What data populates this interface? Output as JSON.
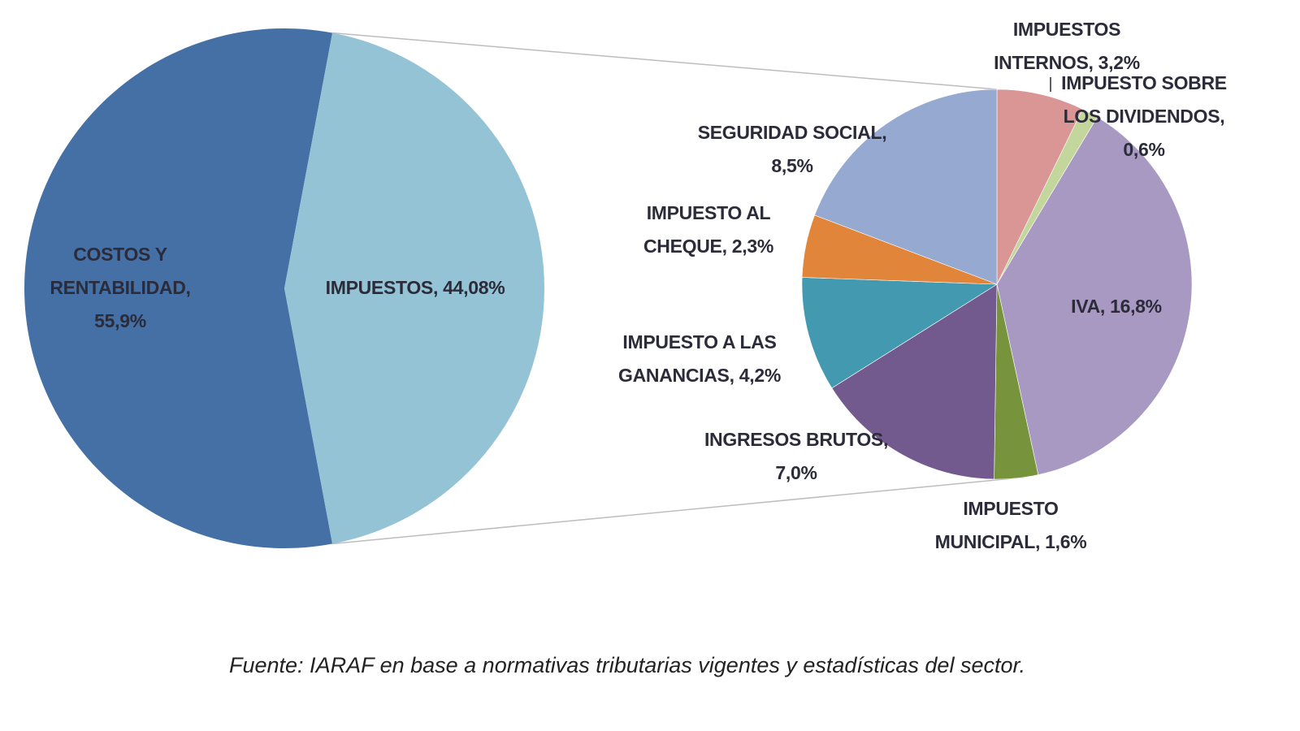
{
  "chart_data": {
    "type": "pie",
    "subtype": "pie-of-pie",
    "title": "",
    "caption": "Fuente: IARAF en base a normativas tributarias vigentes y estadísticas del sector.",
    "main_pie": [
      {
        "name": "COSTOS Y RENTABILIDAD",
        "value": 55.9,
        "label": [
          "COSTOS Y",
          "RENTABILIDAD,",
          "55,9%"
        ],
        "color": "#4470A6"
      },
      {
        "name": "IMPUESTOS",
        "value": 44.08,
        "label": [
          "IMPUESTOS, 44,08%"
        ],
        "color": "#93C3D5"
      }
    ],
    "secondary_pie": [
      {
        "name": "IMPUESTOS INTERNOS",
        "value": 3.2,
        "label": [
          "IMPUESTOS",
          "INTERNOS, 3,2%"
        ],
        "color": "#D99694"
      },
      {
        "name": "IMPUESTO SOBRE LOS DIVIDENDOS",
        "value": 0.6,
        "label": [
          "IMPUESTO SOBRE",
          "LOS DIVIDENDOS,",
          "0,6%"
        ],
        "color": "#C3D69B"
      },
      {
        "name": "IVA",
        "value": 16.8,
        "label": [
          "IVA, 16,8%"
        ],
        "color": "#A899C2"
      },
      {
        "name": "IMPUESTO MUNICIPAL",
        "value": 1.6,
        "label": [
          "IMPUESTO",
          "MUNICIPAL, 1,6%"
        ],
        "color": "#77933C"
      },
      {
        "name": "INGRESOS BRUTOS",
        "value": 7.0,
        "label": [
          "INGRESOS BRUTOS,",
          "7,0%"
        ],
        "color": "#725A8E"
      },
      {
        "name": "IMPUESTO A LAS GANANCIAS",
        "value": 4.2,
        "label": [
          "IMPUESTO A LAS",
          "GANANCIAS, 4,2%"
        ],
        "color": "#4299B0"
      },
      {
        "name": "IMPUESTO AL CHEQUE",
        "value": 2.3,
        "label": [
          "IMPUESTO AL",
          "CHEQUE, 2,3%"
        ],
        "color": "#E0853A"
      },
      {
        "name": "SEGURIDAD SOCIAL",
        "value": 8.5,
        "label": [
          "SEGURIDAD SOCIAL,",
          "8,5%"
        ],
        "color": "#95A9D1"
      }
    ],
    "legend": "none"
  }
}
